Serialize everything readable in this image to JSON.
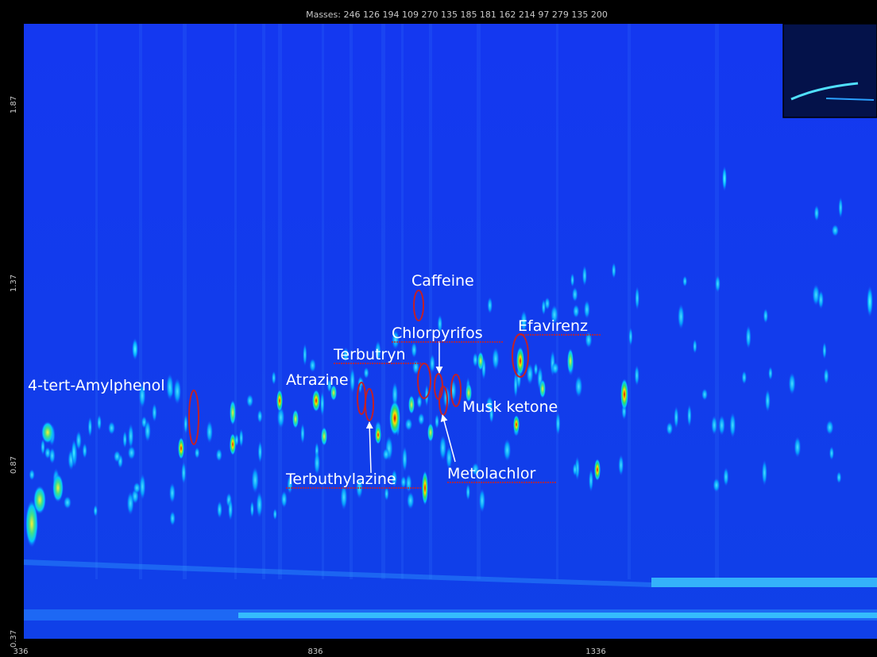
{
  "header": {
    "masses": "Masses:  246 126 194 109 270 135 185 181 162 214 97 279 135 200"
  },
  "axes": {
    "y_ticks": [
      "1.87",
      "1.37",
      "0.87",
      "0.37"
    ],
    "x_ticks": [
      "336",
      "836",
      "1336"
    ]
  },
  "annotations": [
    "Caffeine",
    "Chlorpyrifos",
    "Efavirenz",
    "Terbutryn",
    "4-tert-Amylphenol",
    "Atrazine",
    "Musk ketone",
    "Terbuthylazine",
    "Metolachlor"
  ]
}
